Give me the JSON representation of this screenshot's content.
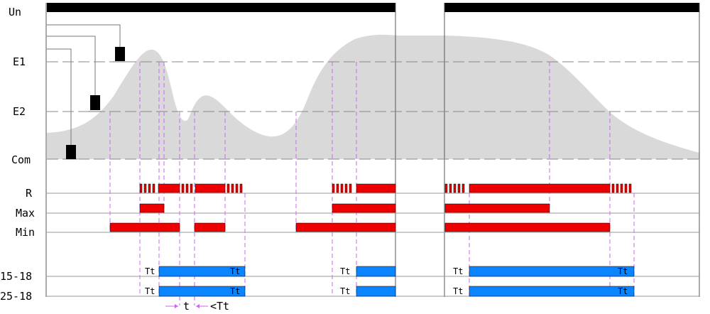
{
  "rows": {
    "un": "Un",
    "e1": "E1",
    "e2": "E2",
    "com": "Com",
    "r": "R",
    "max": "Max",
    "min": "Min",
    "ch1": "15-18",
    "ch2": "25-18"
  },
  "timer_label": "Tt",
  "annotations": {
    "t": "t",
    "lt_tt": "<Tt"
  },
  "colors": {
    "relay_red": "#ee0000",
    "output_blue": "#0a84ff",
    "level_fill": "#d9d9d9",
    "marker_violet": "#cc66ee"
  }
}
